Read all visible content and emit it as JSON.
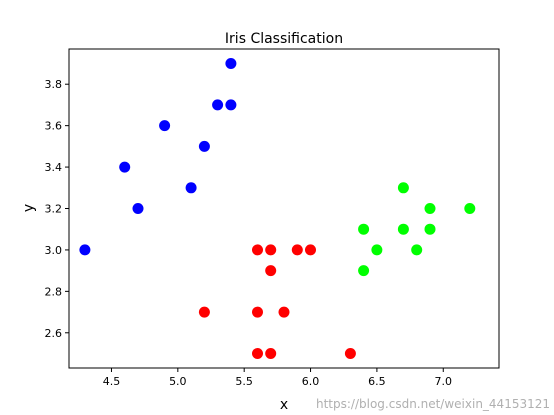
{
  "chart_data": {
    "type": "scatter",
    "title": "Iris Classification",
    "xlabel": "x",
    "ylabel": "y",
    "xlim": [
      4.18,
      7.42
    ],
    "ylim": [
      2.43,
      3.97
    ],
    "xticks": [
      "4.5",
      "5.0",
      "5.5",
      "6.0",
      "6.5",
      "7.0"
    ],
    "yticks": [
      "2.6",
      "2.8",
      "3.0",
      "3.2",
      "3.4",
      "3.6",
      "3.8"
    ],
    "grid": false,
    "series": [
      {
        "color": "#0000ff",
        "points": [
          [
            4.3,
            3.0
          ],
          [
            4.6,
            3.4
          ],
          [
            4.7,
            3.2
          ],
          [
            4.9,
            3.6
          ],
          [
            5.1,
            3.3
          ],
          [
            5.2,
            3.5
          ],
          [
            5.3,
            3.7
          ],
          [
            5.4,
            3.7
          ],
          [
            5.4,
            3.9
          ]
        ]
      },
      {
        "color": "#ff0000",
        "points": [
          [
            5.2,
            2.7
          ],
          [
            5.6,
            3.0
          ],
          [
            5.6,
            2.7
          ],
          [
            5.6,
            2.5
          ],
          [
            5.7,
            3.0
          ],
          [
            5.7,
            2.9
          ],
          [
            5.7,
            2.5
          ],
          [
            5.8,
            2.7
          ],
          [
            5.9,
            3.0
          ],
          [
            6.0,
            3.0
          ],
          [
            6.3,
            2.5
          ]
        ]
      },
      {
        "color": "#00ff00",
        "points": [
          [
            6.4,
            3.1
          ],
          [
            6.4,
            2.9
          ],
          [
            6.5,
            3.0
          ],
          [
            6.7,
            3.3
          ],
          [
            6.7,
            3.1
          ],
          [
            6.8,
            3.0
          ],
          [
            6.9,
            3.2
          ],
          [
            6.9,
            3.1
          ],
          [
            7.2,
            3.2
          ]
        ]
      }
    ]
  },
  "watermark": "https://blog.csdn.net/weixin_44153121"
}
